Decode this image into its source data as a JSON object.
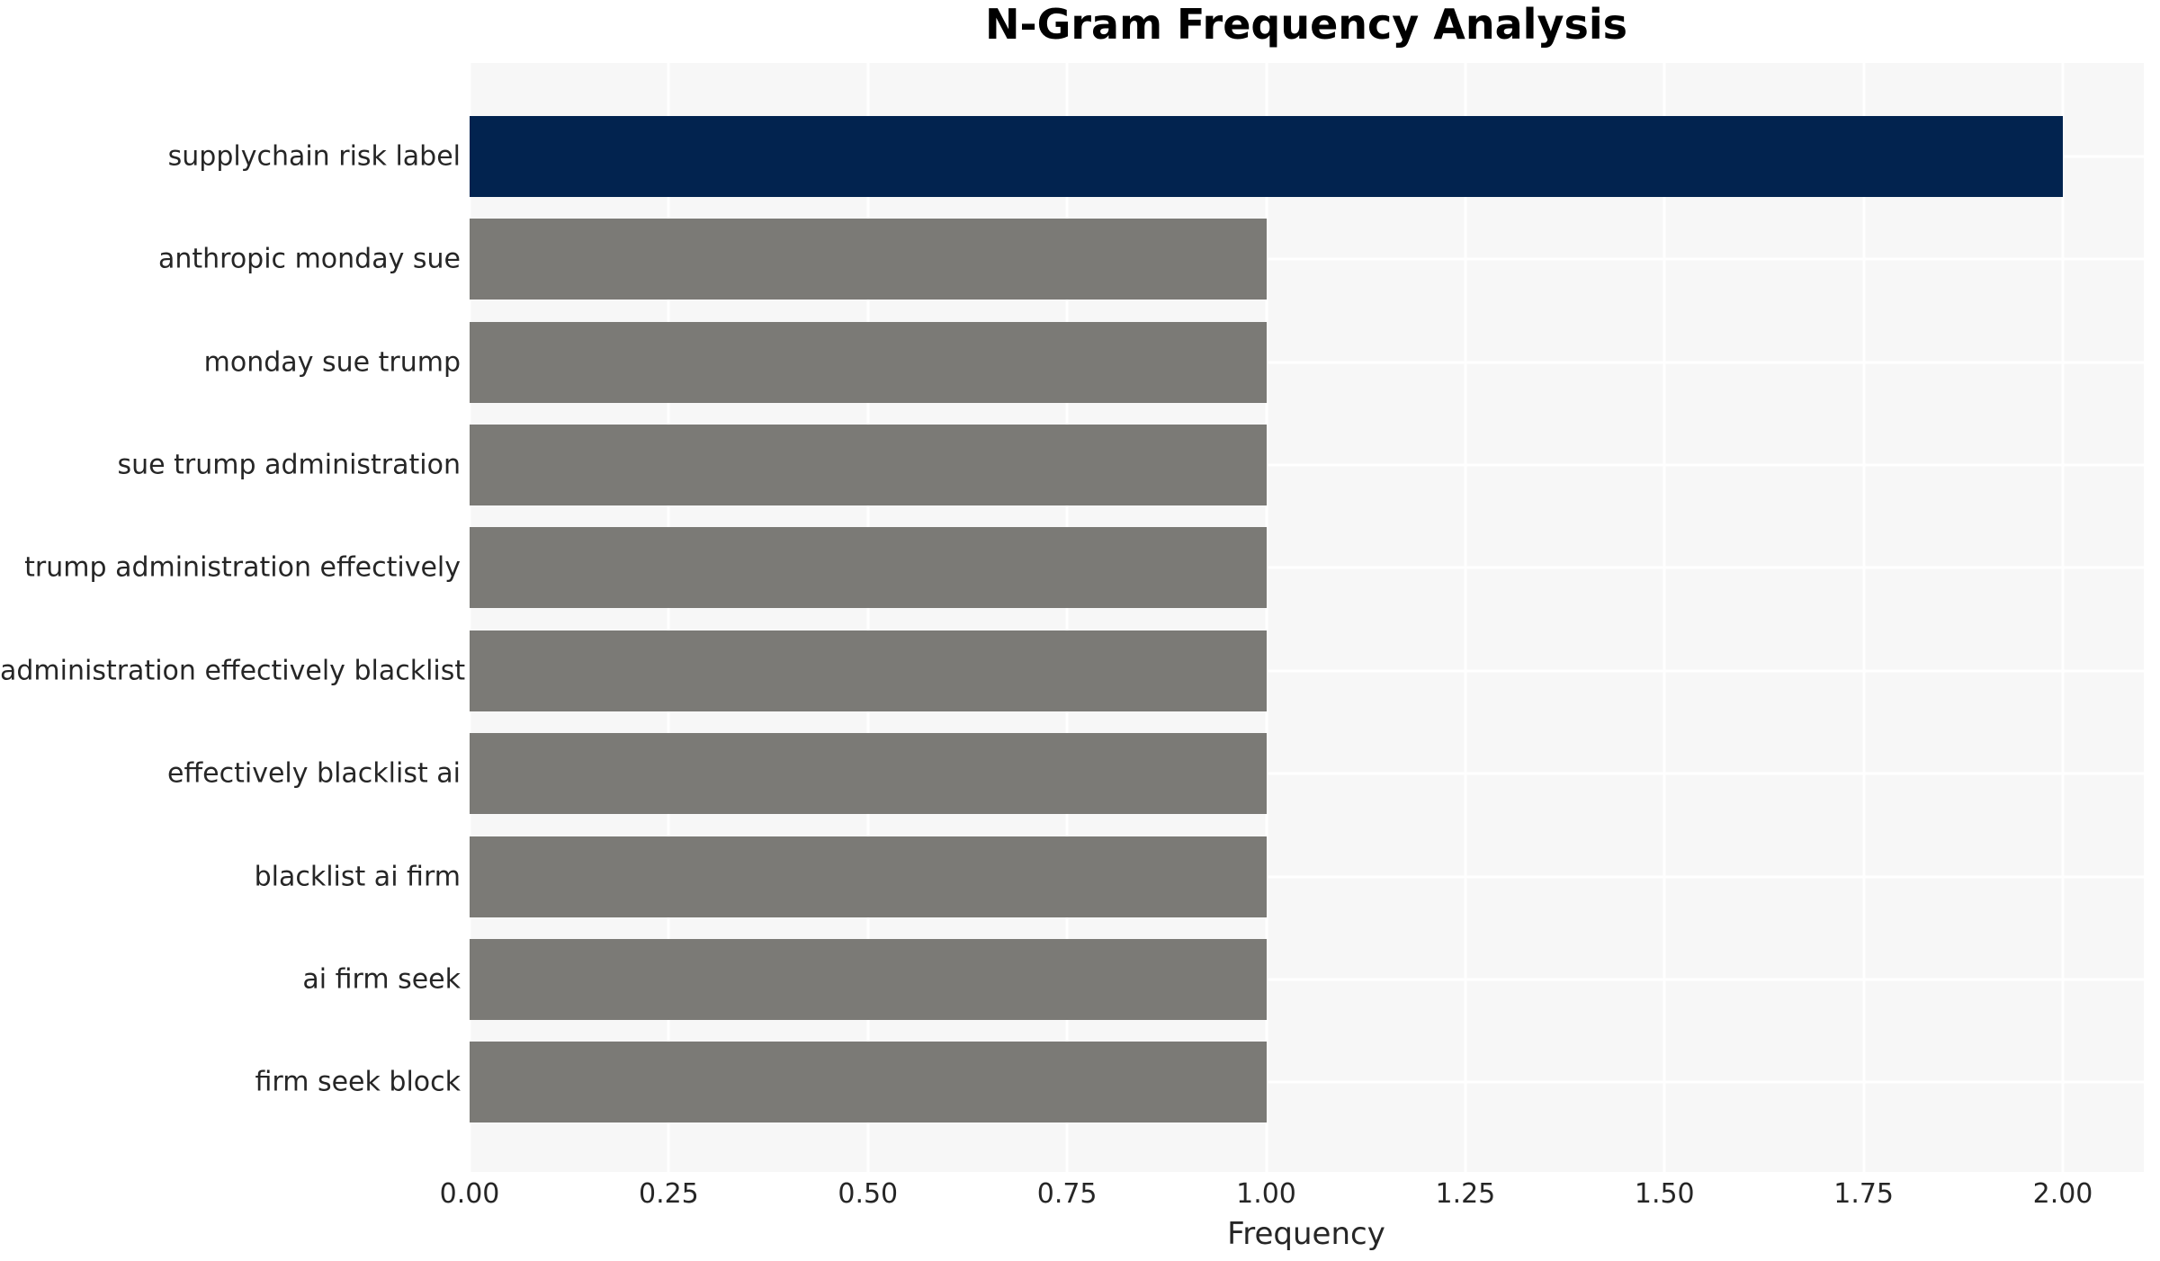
{
  "chart_data": {
    "type": "bar",
    "orientation": "horizontal",
    "title": "N-Gram Frequency Analysis",
    "xlabel": "Frequency",
    "ylabel": "",
    "categories": [
      "supplychain risk label",
      "anthropic monday sue",
      "monday sue trump",
      "sue trump administration",
      "trump administration effectively",
      "administration effectively blacklist",
      "effectively blacklist ai",
      "blacklist ai firm",
      "ai firm seek",
      "firm seek block"
    ],
    "values": [
      2.0,
      1.0,
      1.0,
      1.0,
      1.0,
      1.0,
      1.0,
      1.0,
      1.0,
      1.0
    ],
    "bar_colors": [
      "#02234F",
      "#7B7A76",
      "#7B7A76",
      "#7B7A76",
      "#7B7A76",
      "#7B7A76",
      "#7B7A76",
      "#7B7A76",
      "#7B7A76",
      "#7B7A76"
    ],
    "x_tick_labels": [
      "0.00",
      "0.25",
      "0.50",
      "0.75",
      "1.00",
      "1.25",
      "1.50",
      "1.75",
      "2.00"
    ],
    "x_tick_values": [
      0.0,
      0.25,
      0.5,
      0.75,
      1.0,
      1.25,
      1.5,
      1.75,
      2.0
    ],
    "xlim": [
      0,
      2.1
    ],
    "grid": true,
    "legend": "none",
    "styles": {
      "plot_background": "#F7F7F7",
      "grid_color": "#FFFFFF",
      "highlight_color": "#02234F",
      "base_bar_color": "#7B7A76",
      "text_color": "#262626",
      "title_color": "#000000"
    }
  }
}
